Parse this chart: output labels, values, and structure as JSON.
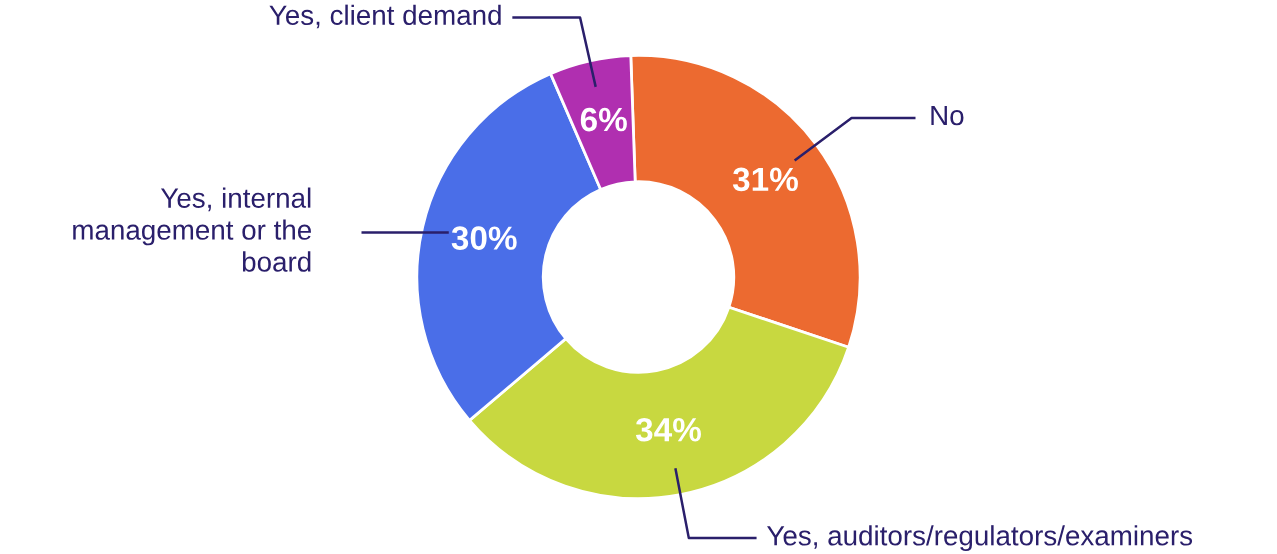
{
  "chart_data": {
    "type": "donut",
    "categories": [
      "No",
      "Yes, auditors/regulators/examiners",
      "Yes, internal\nmanagement or the\nboard",
      "Yes, client demand"
    ],
    "values": [
      31,
      34,
      30,
      6
    ],
    "colors": [
      "#ec6a30",
      "#c8d840",
      "#4a6ee8",
      "#b02fb0"
    ],
    "value_labels": [
      "31%",
      "34%",
      "30%",
      "6%"
    ],
    "legend": false
  }
}
